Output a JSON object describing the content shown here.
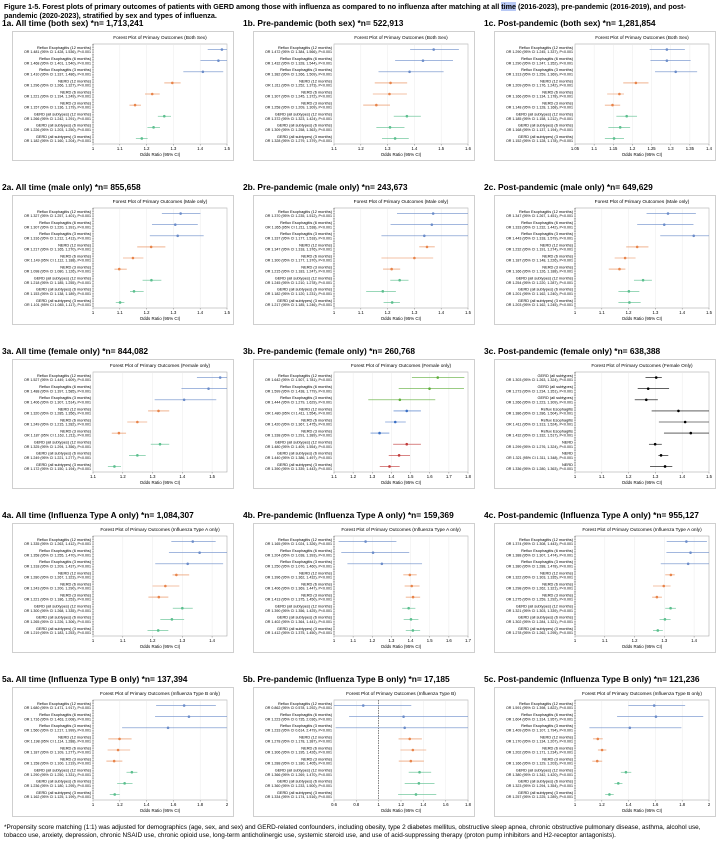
{
  "figure_title": {
    "before": "Figure 1-5. Forest plots of primary outcomes of patients with GERD among those with influenza as compared to no influenza after matching at all ",
    "highlight": "time",
    "after": " (2016-2023), pre-pandemic (2016-2019), and post-pandemic (2020-2023), stratified by sex and types of influenza."
  },
  "footnote": "*Propensity score matching (1:1) was adjusted for demographics (age, sex, and sex) and GERD-related confounders, including obesity, type 2 diabetes mellitus, obstructive sleep apnea, chronic obstructive pulmonary disease, asthma, alcohol use, tobacco use, anxiety, depression, chronic NSAID use, chronic opioid use, long-term anticholinergic use, systemic steroid use, and use of acid-suppressing therapy (proton pump inhibitors and H2-receptor antagonists).",
  "outcome_labels": [
    "Reflux Esophagitis (12 months)",
    "Reflux Esophagitis (6 months)",
    "Reflux Esophagitis (3 months)",
    "NERD (12 months)",
    "NERD (6 months)",
    "NERD (3 months)",
    "GERD (all subtypes) (12 months)",
    "GERD (all subtypes) (6 months)",
    "GERD (all subtypes) (3 months)"
  ],
  "chart_data": [
    {
      "type": "scatter",
      "panel": "1a. All time (both sex) *n= 1,713,241",
      "title": "Forest Plot of Primary Outcomes (Both Sex)",
      "xlabel": "Odds Ratio (95% CI)",
      "xlim": [
        1.0,
        1.5
      ],
      "ticks": [
        1.0,
        1.1,
        1.2,
        1.3,
        1.4,
        1.5
      ],
      "values": [
        1.481,
        1.468,
        1.41,
        1.296,
        1.221,
        1.157,
        1.266,
        1.226,
        1.182
      ],
      "ci_low": [
        1.428,
        1.401,
        1.337,
        1.266,
        1.194,
        1.136,
        1.242,
        1.203,
        1.16
      ],
      "ci_high": [
        1.536,
        1.54,
        1.486,
        1.327,
        1.249,
        1.179,
        1.291,
        1.25,
        1.204
      ],
      "colors": [
        "#6b8cc9",
        "#6b8cc9",
        "#6b8cc9",
        "#e8844a",
        "#e8844a",
        "#e8844a",
        "#5bbf8e",
        "#5bbf8e",
        "#5bbf8e"
      ]
    },
    {
      "type": "scatter",
      "panel": "1b. Pre-pandemic (both sex) *n= 522,913",
      "title": "Forest Plot of Primary Outcomes (Both Sex)",
      "xlabel": "Odds Ratio (95% CI)",
      "xlim": [
        1.1,
        1.6
      ],
      "ticks": [
        1.1,
        1.2,
        1.3,
        1.4,
        1.5,
        1.6
      ],
      "values": [
        1.472,
        1.432,
        1.382,
        1.311,
        1.307,
        1.258,
        1.372,
        1.309,
        1.328
      ],
      "ci_low": [
        1.384,
        1.328,
        1.266,
        1.252,
        1.245,
        1.209,
        1.323,
        1.258,
        1.279
      ],
      "ci_high": [
        1.566,
        1.544,
        1.509,
        1.373,
        1.372,
        1.309,
        1.424,
        1.363,
        1.379
      ],
      "colors": [
        "#6b8cc9",
        "#6b8cc9",
        "#6b8cc9",
        "#e8844a",
        "#e8844a",
        "#e8844a",
        "#5bbf8e",
        "#5bbf8e",
        "#5bbf8e"
      ]
    },
    {
      "type": "scatter",
      "panel": "1c. Post-pandemic (both sex) *n= 1,281,854",
      "title": "Forest Plot of Primary Outcomes (Both Sex)",
      "xlabel": "Odds Ratio (95% CI)",
      "xlim": [
        1.05,
        1.4
      ],
      "ticks": [
        1.05,
        1.1,
        1.15,
        1.2,
        1.25,
        1.3,
        1.35,
        1.4
      ],
      "values": [
        1.29,
        1.29,
        1.313,
        1.209,
        1.166,
        1.148,
        1.185,
        1.168,
        1.152
      ],
      "ci_low": [
        1.245,
        1.247,
        1.259,
        1.176,
        1.134,
        1.128,
        1.158,
        1.137,
        1.128
      ],
      "ci_high": [
        1.337,
        1.352,
        1.369,
        1.242,
        1.178,
        1.168,
        1.212,
        1.194,
        1.178
      ],
      "colors": [
        "#6b8cc9",
        "#6b8cc9",
        "#6b8cc9",
        "#e8844a",
        "#e8844a",
        "#e8844a",
        "#5bbf8e",
        "#5bbf8e",
        "#5bbf8e"
      ]
    },
    {
      "type": "scatter",
      "panel": "2a. All time (male only) *n= 855,658",
      "title": "Forest Plot of Primary Outcomes (Male only)",
      "xlabel": "Odds Ratio (95% CI)",
      "xlim": [
        1.0,
        1.5
      ],
      "ticks": [
        1.0,
        1.1,
        1.2,
        1.3,
        1.4,
        1.5
      ],
      "values": [
        1.327,
        1.307,
        1.316,
        1.217,
        1.149,
        1.098,
        1.218,
        1.153,
        1.101
      ],
      "ci_low": [
        1.257,
        1.22,
        1.212,
        1.165,
        1.112,
        1.08,
        1.185,
        1.138,
        1.085
      ],
      "ci_high": [
        1.401,
        1.391,
        1.413,
        1.27,
        1.188,
        1.126,
        1.255,
        1.189,
        1.117
      ],
      "colors": [
        "#6b8cc9",
        "#6b8cc9",
        "#6b8cc9",
        "#e8844a",
        "#e8844a",
        "#e8844a",
        "#5bbf8e",
        "#5bbf8e",
        "#5bbf8e"
      ]
    },
    {
      "type": "scatter",
      "panel": "2b. Pre-pandemic (male only) *n= 243,673",
      "title": "Forest Plot of Primary Outcomes (Male only)",
      "xlabel": "Odds Ratio (95% CI)",
      "xlim": [
        1.0,
        1.5
      ],
      "ticks": [
        1.0,
        1.1,
        1.2,
        1.3,
        1.4,
        1.5
      ],
      "values": [
        1.37,
        1.365,
        1.337,
        1.347,
        1.3,
        1.215,
        1.245,
        1.182,
        1.217
      ],
      "ci_low": [
        1.235,
        1.211,
        1.177,
        1.318,
        1.177,
        1.183,
        1.21,
        1.12,
        1.185
      ],
      "ci_high": [
        1.512,
        1.538,
        1.518,
        1.376,
        1.37,
        1.247,
        1.278,
        1.231,
        1.246
      ],
      "colors": [
        "#6b8cc9",
        "#6b8cc9",
        "#6b8cc9",
        "#e8844a",
        "#e8844a",
        "#e8844a",
        "#5bbf8e",
        "#5bbf8e",
        "#5bbf8e"
      ]
    },
    {
      "type": "scatter",
      "panel": "2c. Post-pandemic (male only) *n= 649,629",
      "title": "Forest Plot of Primary Outcomes (Male only)",
      "xlabel": "Odds Ratio (95% CI)",
      "xlim": [
        1.0,
        1.5
      ],
      "ticks": [
        1.0,
        1.1,
        1.2,
        1.3,
        1.4,
        1.5
      ],
      "values": [
        1.347,
        1.333,
        1.443,
        1.232,
        1.187,
        1.166,
        1.254,
        1.201,
        1.203
      ],
      "ci_low": [
        1.267,
        1.232,
        1.318,
        1.191,
        1.148,
        1.126,
        1.22,
        1.162,
        1.162
      ],
      "ci_high": [
        1.451,
        1.442,
        1.579,
        1.274,
        1.226,
        1.188,
        1.287,
        1.24,
        1.245
      ],
      "colors": [
        "#6b8cc9",
        "#6b8cc9",
        "#6b8cc9",
        "#e8844a",
        "#e8844a",
        "#e8844a",
        "#5bbf8e",
        "#5bbf8e",
        "#5bbf8e"
      ]
    },
    {
      "type": "scatter",
      "panel": "3a. All time (female only) *n= 844,082",
      "title": "Forest Plot of Primary Outcomes (Female only)",
      "xlabel": "Odds Ratio (95% CI)",
      "xlim": [
        1.1,
        1.55
      ],
      "ticks": [
        1.1,
        1.2,
        1.3,
        1.4,
        1.5
      ],
      "values": [
        1.527,
        1.488,
        1.406,
        1.32,
        1.249,
        1.187,
        1.325,
        1.249,
        1.172
      ],
      "ci_low": [
        1.449,
        1.397,
        1.307,
        1.285,
        1.215,
        1.163,
        1.294,
        1.221,
        1.15
      ],
      "ci_high": [
        1.609,
        1.585,
        1.514,
        1.356,
        1.282,
        1.211,
        1.356,
        1.277,
        1.194
      ],
      "colors": [
        "#6b8cc9",
        "#6b8cc9",
        "#6b8cc9",
        "#e8844a",
        "#e8844a",
        "#e8844a",
        "#5bbf8e",
        "#5bbf8e",
        "#5bbf8e"
      ]
    },
    {
      "type": "scatter",
      "panel": "3b. Pre-pandemic (female only) *n= 260,768",
      "title": "Forest Plot of Primary Outcomes (Female only)",
      "xlabel": "Odds Ratio (95% CI)",
      "xlim": [
        1.1,
        1.8
      ],
      "ticks": [
        1.1,
        1.2,
        1.3,
        1.4,
        1.5,
        1.6,
        1.7,
        1.8
      ],
      "values": [
        1.642,
        1.599,
        1.444,
        1.48,
        1.42,
        1.338,
        1.48,
        1.44,
        1.39
      ],
      "ci_low": [
        1.507,
        1.438,
        1.279,
        1.411,
        1.367,
        1.291,
        1.409,
        1.386,
        1.339
      ],
      "ci_high": [
        1.781,
        1.779,
        1.629,
        1.554,
        1.475,
        1.389,
        1.554,
        1.497,
        1.443
      ],
      "colors": [
        "#5fae3a",
        "#5fae3a",
        "#5fae3a",
        "#3a6fc4",
        "#3a6fc4",
        "#3a6fc4",
        "#c23a3a",
        "#c23a3a",
        "#c23a3a"
      ]
    },
    {
      "type": "scatter",
      "panel": "3c. Post-pandemic (female only) *n= 638,388",
      "title": "Forest Plot of Primary Outcomes (Female Only)",
      "xlabel": "Odds Ratio (95% CI)",
      "xlim": [
        1.0,
        1.5
      ],
      "ticks": [
        1.0,
        1.1,
        1.2,
        1.3,
        1.4,
        1.5
      ],
      "labels": [
        "GERD (all subtypes)",
        "GERD (all subtypes)",
        "GERD (all subtypes)",
        "Reflux Esophagitis",
        "Reflux Esophagitis",
        "Reflux Esophagitis",
        "NERD",
        "NERD",
        "NERD"
      ],
      "values": [
        1.303,
        1.273,
        1.266,
        1.386,
        1.411,
        1.432,
        1.299,
        1.321,
        1.336
      ],
      "ci_low": [
        1.263,
        1.234,
        1.223,
        1.286,
        1.313,
        1.332,
        1.276,
        1.311,
        1.28
      ],
      "ci_high": [
        1.324,
        1.351,
        1.309,
        1.504,
        1.524,
        1.517,
        1.324,
        1.348,
        1.363
      ],
      "colors": [
        "#000000",
        "#000000",
        "#000000",
        "#000000",
        "#000000",
        "#000000",
        "#000000",
        "#000000",
        "#000000"
      ]
    },
    {
      "type": "scatter",
      "panel": "4a. All time (Influenza Type A only) *n= 1,084,307",
      "title": "Forest Plot of Primary Outcomes (Influenza Type A only)",
      "xlabel": "Odds Ratio (95% CI)",
      "xlim": [
        1.0,
        1.45
      ],
      "ticks": [
        1.0,
        1.1,
        1.2,
        1.3,
        1.4
      ],
      "values": [
        1.335,
        1.358,
        1.318,
        1.28,
        1.243,
        1.221,
        1.3,
        1.265,
        1.219
      ],
      "ci_low": [
        1.263,
        1.255,
        1.209,
        1.267,
        1.2,
        1.186,
        1.268,
        1.226,
        1.183
      ],
      "ci_high": [
        1.412,
        1.47,
        1.437,
        1.323,
        1.29,
        1.253,
        1.335,
        1.306,
        1.253
      ],
      "colors": [
        "#6b8cc9",
        "#6b8cc9",
        "#6b8cc9",
        "#e8844a",
        "#e8844a",
        "#e8844a",
        "#5bbf8e",
        "#5bbf8e",
        "#5bbf8e"
      ]
    },
    {
      "type": "scatter",
      "panel": "4b. Pre-pandemic (Influenza Type A only) *n= 159,369",
      "title": "Forest Plot of Primary Outcomes (Influenza Type A only)",
      "xlabel": "Odds Ratio (95% CI)",
      "xlim": [
        1.0,
        1.7
      ],
      "ticks": [
        1.0,
        1.1,
        1.2,
        1.3,
        1.4,
        1.5,
        1.6,
        1.7
      ],
      "values": [
        1.165,
        1.204,
        1.25,
        1.396,
        1.406,
        1.413,
        1.39,
        1.402,
        1.412
      ],
      "ci_low": [
        1.024,
        1.038,
        1.07,
        1.362,
        1.369,
        1.375,
        1.356,
        1.364,
        1.375
      ],
      "ci_high": [
        1.326,
        1.393,
        1.46,
        1.432,
        1.447,
        1.45,
        1.425,
        1.441,
        1.45
      ],
      "colors": [
        "#6b8cc9",
        "#6b8cc9",
        "#6b8cc9",
        "#e8844a",
        "#e8844a",
        "#e8844a",
        "#5bbf8e",
        "#5bbf8e",
        "#5bbf8e"
      ]
    },
    {
      "type": "scatter",
      "panel": "4c. Post-pandemic (Influenza Type A only) *n= 955,127",
      "title": "Forest Plot of Primary Outcomes (Influenza Type A only)",
      "xlabel": "Odds Ratio (95% CI)",
      "xlim": [
        1.0,
        1.45
      ],
      "ticks": [
        1.0,
        1.1,
        1.2,
        1.3,
        1.4
      ],
      "values": [
        1.374,
        1.388,
        1.38,
        1.322,
        1.298,
        1.275,
        1.321,
        1.302,
        1.278
      ],
      "ci_low": [
        1.308,
        1.307,
        1.288,
        1.303,
        1.262,
        1.259,
        1.303,
        1.284,
        1.262
      ],
      "ci_high": [
        1.443,
        1.474,
        1.478,
        1.335,
        1.321,
        1.292,
        1.339,
        1.321,
        1.295
      ],
      "colors": [
        "#6b8cc9",
        "#6b8cc9",
        "#6b8cc9",
        "#e8844a",
        "#e8844a",
        "#e8844a",
        "#5bbf8e",
        "#5bbf8e",
        "#5bbf8e"
      ]
    },
    {
      "type": "scatter",
      "panel": "5a. All time (Influenza Type B only) *n= 137,394",
      "title": "Forest Plot of Primary Outcomes (Influenza Type B only)",
      "xlabel": "Odds Ratio (95% CI)",
      "xlim": [
        1.0,
        2.0
      ],
      "ticks": [
        1.0,
        1.2,
        1.4,
        1.6,
        1.8,
        2.0
      ],
      "values": [
        1.68,
        1.716,
        1.56,
        1.198,
        1.187,
        1.158,
        1.29,
        1.236,
        1.162
      ],
      "ci_low": [
        1.471,
        1.463,
        1.217,
        1.114,
        1.109,
        1.1,
        1.25,
        1.18,
        1.125
      ],
      "ci_high": [
        1.917,
        2.008,
        1.999,
        1.288,
        1.277,
        1.219,
        1.331,
        1.295,
        1.199
      ],
      "colors": [
        "#6b8cc9",
        "#6b8cc9",
        "#6b8cc9",
        "#e8844a",
        "#e8844a",
        "#e8844a",
        "#5bbf8e",
        "#5bbf8e",
        "#5bbf8e"
      ]
    },
    {
      "type": "scatter",
      "panel": "5b. Pre-pandemic (Influenza Type B only) *n= 17,185",
      "title": "Forest Plot of Primary Outcomes (Influenza Type B)",
      "xlabel": "Odds Ratio (95% CI)",
      "xlim": [
        0.6,
        1.8
      ],
      "ticks": [
        0.6,
        0.8,
        1.0,
        1.2,
        1.4,
        1.6,
        1.8
      ],
      "values": [
        0.862,
        1.223,
        1.233,
        1.278,
        1.306,
        1.288,
        1.366,
        1.36,
        1.334
      ],
      "ci_low": [
        0.578,
        0.735,
        0.614,
        1.178,
        1.195,
        1.18,
        1.269,
        1.233,
        1.174
      ],
      "ci_high": [
        1.292,
        2.036,
        2.479,
        1.387,
        1.426,
        1.405,
        1.47,
        1.5,
        1.516
      ],
      "colors": [
        "#6b8cc9",
        "#6b8cc9",
        "#6b8cc9",
        "#e8844a",
        "#e8844a",
        "#e8844a",
        "#5bbf8e",
        "#5bbf8e",
        "#5bbf8e"
      ]
    },
    {
      "type": "scatter",
      "panel": "5c. Post-pandemic (Influenza Type B only) *n= 121,236",
      "title": "Forest Plot of Primary Outcomes (Influenza Type B only)",
      "xlabel": "Odds Ratio (95% CI)",
      "xlim": [
        1.0,
        2.0
      ],
      "ticks": [
        1.0,
        1.2,
        1.4,
        1.6,
        1.8,
        2.0
      ],
      "values": [
        1.591,
        1.604,
        1.409,
        1.17,
        1.202,
        1.166,
        1.38,
        1.323,
        1.257
      ],
      "ci_low": [
        1.398,
        1.314,
        1.107,
        1.134,
        1.171,
        1.129,
        1.342,
        1.294,
        1.225
      ],
      "ci_high": [
        1.822,
        1.957,
        1.794,
        1.207,
        1.234,
        1.203,
        1.42,
        1.354,
        1.289
      ],
      "colors": [
        "#6b8cc9",
        "#6b8cc9",
        "#6b8cc9",
        "#e8844a",
        "#e8844a",
        "#e8844a",
        "#5bbf8e",
        "#5bbf8e",
        "#5bbf8e"
      ]
    }
  ]
}
